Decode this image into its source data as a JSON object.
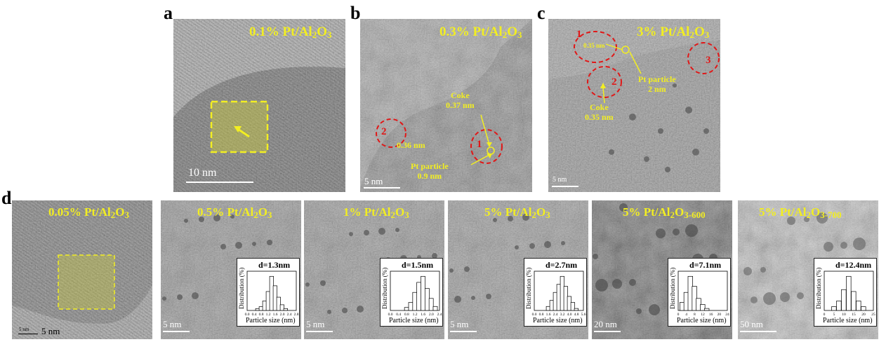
{
  "panel_letters": {
    "a": "a",
    "b": "b",
    "c": "c",
    "d": "d"
  },
  "panel_a": {
    "title_main": "0.1% Pt/Al",
    "title_sub": "2",
    "title_tail": "O",
    "title_sub2": "3",
    "scale": "10 nm"
  },
  "panel_b": {
    "title_main": "0.3% Pt/Al",
    "title_sub": "2",
    "title_tail": "O",
    "title_sub2": "3",
    "scale": "5 nm",
    "region1": "1",
    "region2": "2",
    "coke_label": "Coke",
    "coke_value": "0.37 nm",
    "lattice_label": "0.36 nm",
    "pt_label": "Pt particle",
    "pt_value": "0.9 nm"
  },
  "panel_c": {
    "title_main": "3% Pt/Al",
    "title_sub": "2",
    "title_tail": "O",
    "title_sub2": "3",
    "scale": "5 nm",
    "region1": "1",
    "region2": "2",
    "region3": "3",
    "lattice_label": "0.35 nm",
    "pt_label": "Pt particle",
    "pt_value": "2 nm",
    "coke_label": "Coke",
    "coke_value": "0.35 nm"
  },
  "panel_d": [
    {
      "title_main": "0.05% Pt/Al",
      "title_sub": "2",
      "title_tail": "O",
      "title_sub2": "3",
      "scale": "5 nm",
      "scale_bar_text": "5 nm"
    },
    {
      "title_main": "0.5% Pt/Al",
      "title_sub": "2",
      "title_tail": "O",
      "title_sub2": "3",
      "scale": "5 nm",
      "d": "d=1.3nm"
    },
    {
      "title_main": "1% Pt/Al",
      "title_sub": "2",
      "title_tail": "O",
      "title_sub2": "3",
      "scale": "5 nm",
      "d": "d=1.5nm"
    },
    {
      "title_main": "5% Pt/Al",
      "title_sub": "2",
      "title_tail": "O",
      "title_sub2": "3",
      "scale": "5 nm",
      "d": "d=2.7nm"
    },
    {
      "title_main": "5% Pt/Al",
      "title_sub": "2",
      "title_tail": "O",
      "title_sub2": "3-600",
      "scale": "20 nm",
      "d": "d=7.1nm"
    },
    {
      "title_main": "5% Pt/Al",
      "title_sub": "2",
      "title_tail": "O",
      "title_sub2": "3-700",
      "scale": "50 nm",
      "d": "d=12.4nm"
    }
  ],
  "inset_axes": {
    "xlabel": "Particle size (nm)",
    "ylabel": "Distribution (%)"
  },
  "chart_data": [
    {
      "type": "bar",
      "xlabel": "Particle size (nm)",
      "ylabel": "Distribution (%)",
      "title": "d=1.3nm",
      "x": [
        0.6,
        0.8,
        1.0,
        1.2,
        1.4,
        1.6,
        1.8,
        2.0,
        2.2
      ],
      "values": [
        2,
        4,
        10,
        20,
        36,
        26,
        14,
        6,
        2
      ],
      "ticks": [
        "0.0",
        "0.4",
        "0.8",
        "1.2",
        "1.6",
        "2.0",
        "2.4",
        "2.8"
      ]
    },
    {
      "type": "bar",
      "xlabel": "Particle size (nm)",
      "ylabel": "Distribution (%)",
      "title": "d=1.5nm",
      "x": [
        0.8,
        1.0,
        1.2,
        1.4,
        1.6,
        1.8,
        2.0,
        2.2
      ],
      "values": [
        3,
        8,
        18,
        28,
        34,
        22,
        12,
        4
      ],
      "ticks": [
        "0.0",
        "0.4",
        "0.8",
        "1.2",
        "1.6",
        "2.0",
        "2.4"
      ]
    },
    {
      "type": "bar",
      "xlabel": "Particle size (nm)",
      "ylabel": "Distribution (%)",
      "title": "d=2.7nm",
      "x": [
        1.6,
        2.0,
        2.4,
        2.8,
        3.2,
        3.6,
        4.0,
        4.4,
        4.8
      ],
      "values": [
        4,
        10,
        18,
        26,
        34,
        24,
        14,
        8,
        2
      ],
      "ticks": [
        "0.0",
        "0.8",
        "1.6",
        "2.4",
        "3.2",
        "4.0",
        "4.8",
        "5.6"
      ]
    },
    {
      "type": "bar",
      "xlabel": "Particle size (nm)",
      "ylabel": "Distribution (%)",
      "title": "d=7.1nm",
      "x": [
        2,
        4,
        6,
        8,
        10,
        12,
        14
      ],
      "values": [
        8,
        18,
        34,
        24,
        12,
        6,
        2
      ],
      "ticks": [
        "0",
        "4",
        "8",
        "12",
        "16",
        "20",
        "24"
      ]
    },
    {
      "type": "bar",
      "xlabel": "Particle size (nm)",
      "ylabel": "Distribution (%)",
      "title": "d=12.4nm",
      "x": [
        5,
        7.5,
        10,
        12.5,
        15,
        17.5,
        20
      ],
      "values": [
        4,
        10,
        22,
        36,
        20,
        10,
        4
      ],
      "ticks": [
        "0",
        "5",
        "10",
        "15",
        "20",
        "25"
      ]
    }
  ]
}
